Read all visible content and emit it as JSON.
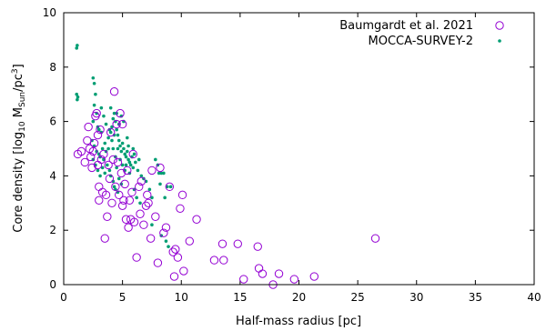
{
  "chart_data": {
    "type": "scatter",
    "xlabel": "Half-mass radius [pc]",
    "ylabel": {
      "prefix": "Core density [log",
      "sub1": "10",
      "mid": " M",
      "sub2": "Sun",
      "mid2": "/pc",
      "sup": "3",
      "suffix": "]"
    },
    "xlim": [
      0,
      40
    ],
    "ylim": [
      0,
      10
    ],
    "xticks": [
      0,
      5,
      10,
      15,
      20,
      25,
      30,
      35,
      40
    ],
    "yticks": [
      0,
      2,
      4,
      6,
      8,
      10
    ],
    "legend_position": "top-right",
    "colors": {
      "baumgardt": "#9400d3",
      "mocca": "#009e73"
    },
    "series": [
      {
        "name": "Baumgardt et al. 2021",
        "marker": "open-circle",
        "points": [
          [
            1.2,
            4.8
          ],
          [
            1.5,
            4.9
          ],
          [
            1.8,
            4.5
          ],
          [
            2.0,
            5.3
          ],
          [
            2.1,
            5.8
          ],
          [
            2.2,
            5.0
          ],
          [
            2.3,
            4.7
          ],
          [
            2.4,
            4.3
          ],
          [
            2.5,
            4.9
          ],
          [
            2.6,
            5.2
          ],
          [
            2.7,
            6.2
          ],
          [
            2.8,
            6.3
          ],
          [
            2.9,
            5.5
          ],
          [
            2.9,
            4.4
          ],
          [
            3.0,
            3.6
          ],
          [
            3.0,
            3.1
          ],
          [
            3.1,
            5.7
          ],
          [
            3.2,
            4.6
          ],
          [
            3.3,
            3.4
          ],
          [
            3.4,
            4.8
          ],
          [
            3.5,
            1.7
          ],
          [
            3.6,
            3.3
          ],
          [
            3.7,
            2.5
          ],
          [
            3.8,
            4.4
          ],
          [
            3.9,
            3.9
          ],
          [
            4.0,
            5.6
          ],
          [
            4.1,
            3.0
          ],
          [
            4.2,
            4.6
          ],
          [
            4.3,
            7.1
          ],
          [
            4.4,
            3.6
          ],
          [
            4.5,
            5.9
          ],
          [
            4.6,
            4.5
          ],
          [
            4.7,
            3.3
          ],
          [
            4.8,
            6.3
          ],
          [
            4.9,
            4.1
          ],
          [
            5.0,
            2.9
          ],
          [
            5.0,
            5.9
          ],
          [
            5.1,
            3.1
          ],
          [
            5.2,
            3.7
          ],
          [
            5.3,
            2.4
          ],
          [
            5.4,
            4.2
          ],
          [
            5.5,
            2.1
          ],
          [
            5.6,
            3.1
          ],
          [
            5.7,
            2.4
          ],
          [
            5.8,
            3.4
          ],
          [
            5.9,
            4.8
          ],
          [
            6.0,
            2.3
          ],
          [
            6.2,
            1.0
          ],
          [
            6.4,
            3.6
          ],
          [
            6.5,
            2.6
          ],
          [
            6.6,
            3.8
          ],
          [
            6.8,
            2.2
          ],
          [
            7.0,
            2.9
          ],
          [
            7.1,
            3.3
          ],
          [
            7.2,
            3.0
          ],
          [
            7.4,
            1.7
          ],
          [
            7.5,
            4.2
          ],
          [
            7.8,
            2.5
          ],
          [
            8.0,
            0.8
          ],
          [
            8.2,
            4.3
          ],
          [
            8.5,
            1.9
          ],
          [
            8.7,
            2.1
          ],
          [
            9.0,
            3.6
          ],
          [
            9.3,
            1.2
          ],
          [
            9.4,
            0.3
          ],
          [
            9.5,
            1.3
          ],
          [
            9.7,
            1.0
          ],
          [
            9.9,
            2.8
          ],
          [
            10.1,
            3.3
          ],
          [
            10.2,
            0.5
          ],
          [
            10.7,
            1.6
          ],
          [
            11.3,
            2.4
          ],
          [
            12.8,
            0.9
          ],
          [
            13.5,
            1.5
          ],
          [
            13.6,
            0.9
          ],
          [
            14.8,
            1.5
          ],
          [
            15.3,
            0.2
          ],
          [
            16.5,
            1.4
          ],
          [
            16.6,
            0.6
          ],
          [
            16.9,
            0.4
          ],
          [
            17.8,
            0.0
          ],
          [
            18.3,
            0.4
          ],
          [
            19.6,
            0.2
          ],
          [
            21.3,
            0.3
          ],
          [
            26.5,
            1.7
          ]
        ]
      },
      {
        "name": "MOCCA-SURVEY-2",
        "marker": "filled-dot",
        "points": [
          [
            1.1,
            8.7
          ],
          [
            1.15,
            8.8
          ],
          [
            1.1,
            7.0
          ],
          [
            1.2,
            6.9
          ],
          [
            1.15,
            6.8
          ],
          [
            2.5,
            7.6
          ],
          [
            2.6,
            7.4
          ],
          [
            2.7,
            7.0
          ],
          [
            2.6,
            6.6
          ],
          [
            2.8,
            6.3
          ],
          [
            2.5,
            6.0
          ],
          [
            2.9,
            5.8
          ],
          [
            3.0,
            5.7
          ],
          [
            3.2,
            5.6
          ],
          [
            2.4,
            5.3
          ],
          [
            2.6,
            5.1
          ],
          [
            2.8,
            4.9
          ],
          [
            3.0,
            4.8
          ],
          [
            2.5,
            4.6
          ],
          [
            2.7,
            4.4
          ],
          [
            3.1,
            4.7
          ],
          [
            3.3,
            5.0
          ],
          [
            3.5,
            5.2
          ],
          [
            3.6,
            4.9
          ],
          [
            3.8,
            5.4
          ],
          [
            4.0,
            5.6
          ],
          [
            4.1,
            5.8
          ],
          [
            4.2,
            6.1
          ],
          [
            4.4,
            6.0
          ],
          [
            4.5,
            5.7
          ],
          [
            4.6,
            5.5
          ],
          [
            4.7,
            5.3
          ],
          [
            4.8,
            5.1
          ],
          [
            4.9,
            4.9
          ],
          [
            5.0,
            5.2
          ],
          [
            5.1,
            5.0
          ],
          [
            5.2,
            4.8
          ],
          [
            5.3,
            4.7
          ],
          [
            5.4,
            4.9
          ],
          [
            5.5,
            4.6
          ],
          [
            5.6,
            4.5
          ],
          [
            3.4,
            4.6
          ],
          [
            3.7,
            4.4
          ],
          [
            3.9,
            4.2
          ],
          [
            4.0,
            4.0
          ],
          [
            4.2,
            3.8
          ],
          [
            4.3,
            3.6
          ],
          [
            4.4,
            3.5
          ],
          [
            4.6,
            3.4
          ],
          [
            4.5,
            4.3
          ],
          [
            3.8,
            5.0
          ],
          [
            4.1,
            5.3
          ],
          [
            4.3,
            5.5
          ],
          [
            4.6,
            5.0
          ],
          [
            4.8,
            4.6
          ],
          [
            5.0,
            4.4
          ],
          [
            5.2,
            4.2
          ],
          [
            5.4,
            5.4
          ],
          [
            5.5,
            5.1
          ],
          [
            4.9,
            6.2
          ],
          [
            5.1,
            6.0
          ],
          [
            4.7,
            5.9
          ],
          [
            3.2,
            6.5
          ],
          [
            3.4,
            6.2
          ],
          [
            3.6,
            5.9
          ],
          [
            4.0,
            6.5
          ],
          [
            4.3,
            6.3
          ],
          [
            2.9,
            4.2
          ],
          [
            3.1,
            4.0
          ],
          [
            3.3,
            4.3
          ],
          [
            3.5,
            4.1
          ],
          [
            4.7,
            3.9
          ],
          [
            4.9,
            3.7
          ],
          [
            4.4,
            4.7
          ],
          [
            4.2,
            5.0
          ],
          [
            5.7,
            4.4
          ],
          [
            5.9,
            4.3
          ],
          [
            6.1,
            4.5
          ],
          [
            6.3,
            4.2
          ],
          [
            6.6,
            4.0
          ],
          [
            6.8,
            3.9
          ],
          [
            7.0,
            3.8
          ],
          [
            7.3,
            3.5
          ],
          [
            7.5,
            3.2
          ],
          [
            7.8,
            4.6
          ],
          [
            8.0,
            4.4
          ],
          [
            8.1,
            4.1
          ],
          [
            8.3,
            4.1
          ],
          [
            8.5,
            4.1
          ],
          [
            8.2,
            3.7
          ],
          [
            8.6,
            3.2
          ],
          [
            8.8,
            3.6
          ],
          [
            9.1,
            3.6
          ],
          [
            6.0,
            3.5
          ],
          [
            6.2,
            3.2
          ],
          [
            6.5,
            3.0
          ],
          [
            7.5,
            2.2
          ],
          [
            8.3,
            1.8
          ],
          [
            8.9,
            1.4
          ],
          [
            8.7,
            1.6
          ],
          [
            5.3,
            4.4
          ],
          [
            5.6,
            4.1
          ],
          [
            5.8,
            4.7
          ],
          [
            6.4,
            4.6
          ],
          [
            5.9,
            5.0
          ],
          [
            6.0,
            4.8
          ],
          [
            3.9,
            5.7
          ],
          [
            4.5,
            6.3
          ]
        ]
      }
    ]
  }
}
